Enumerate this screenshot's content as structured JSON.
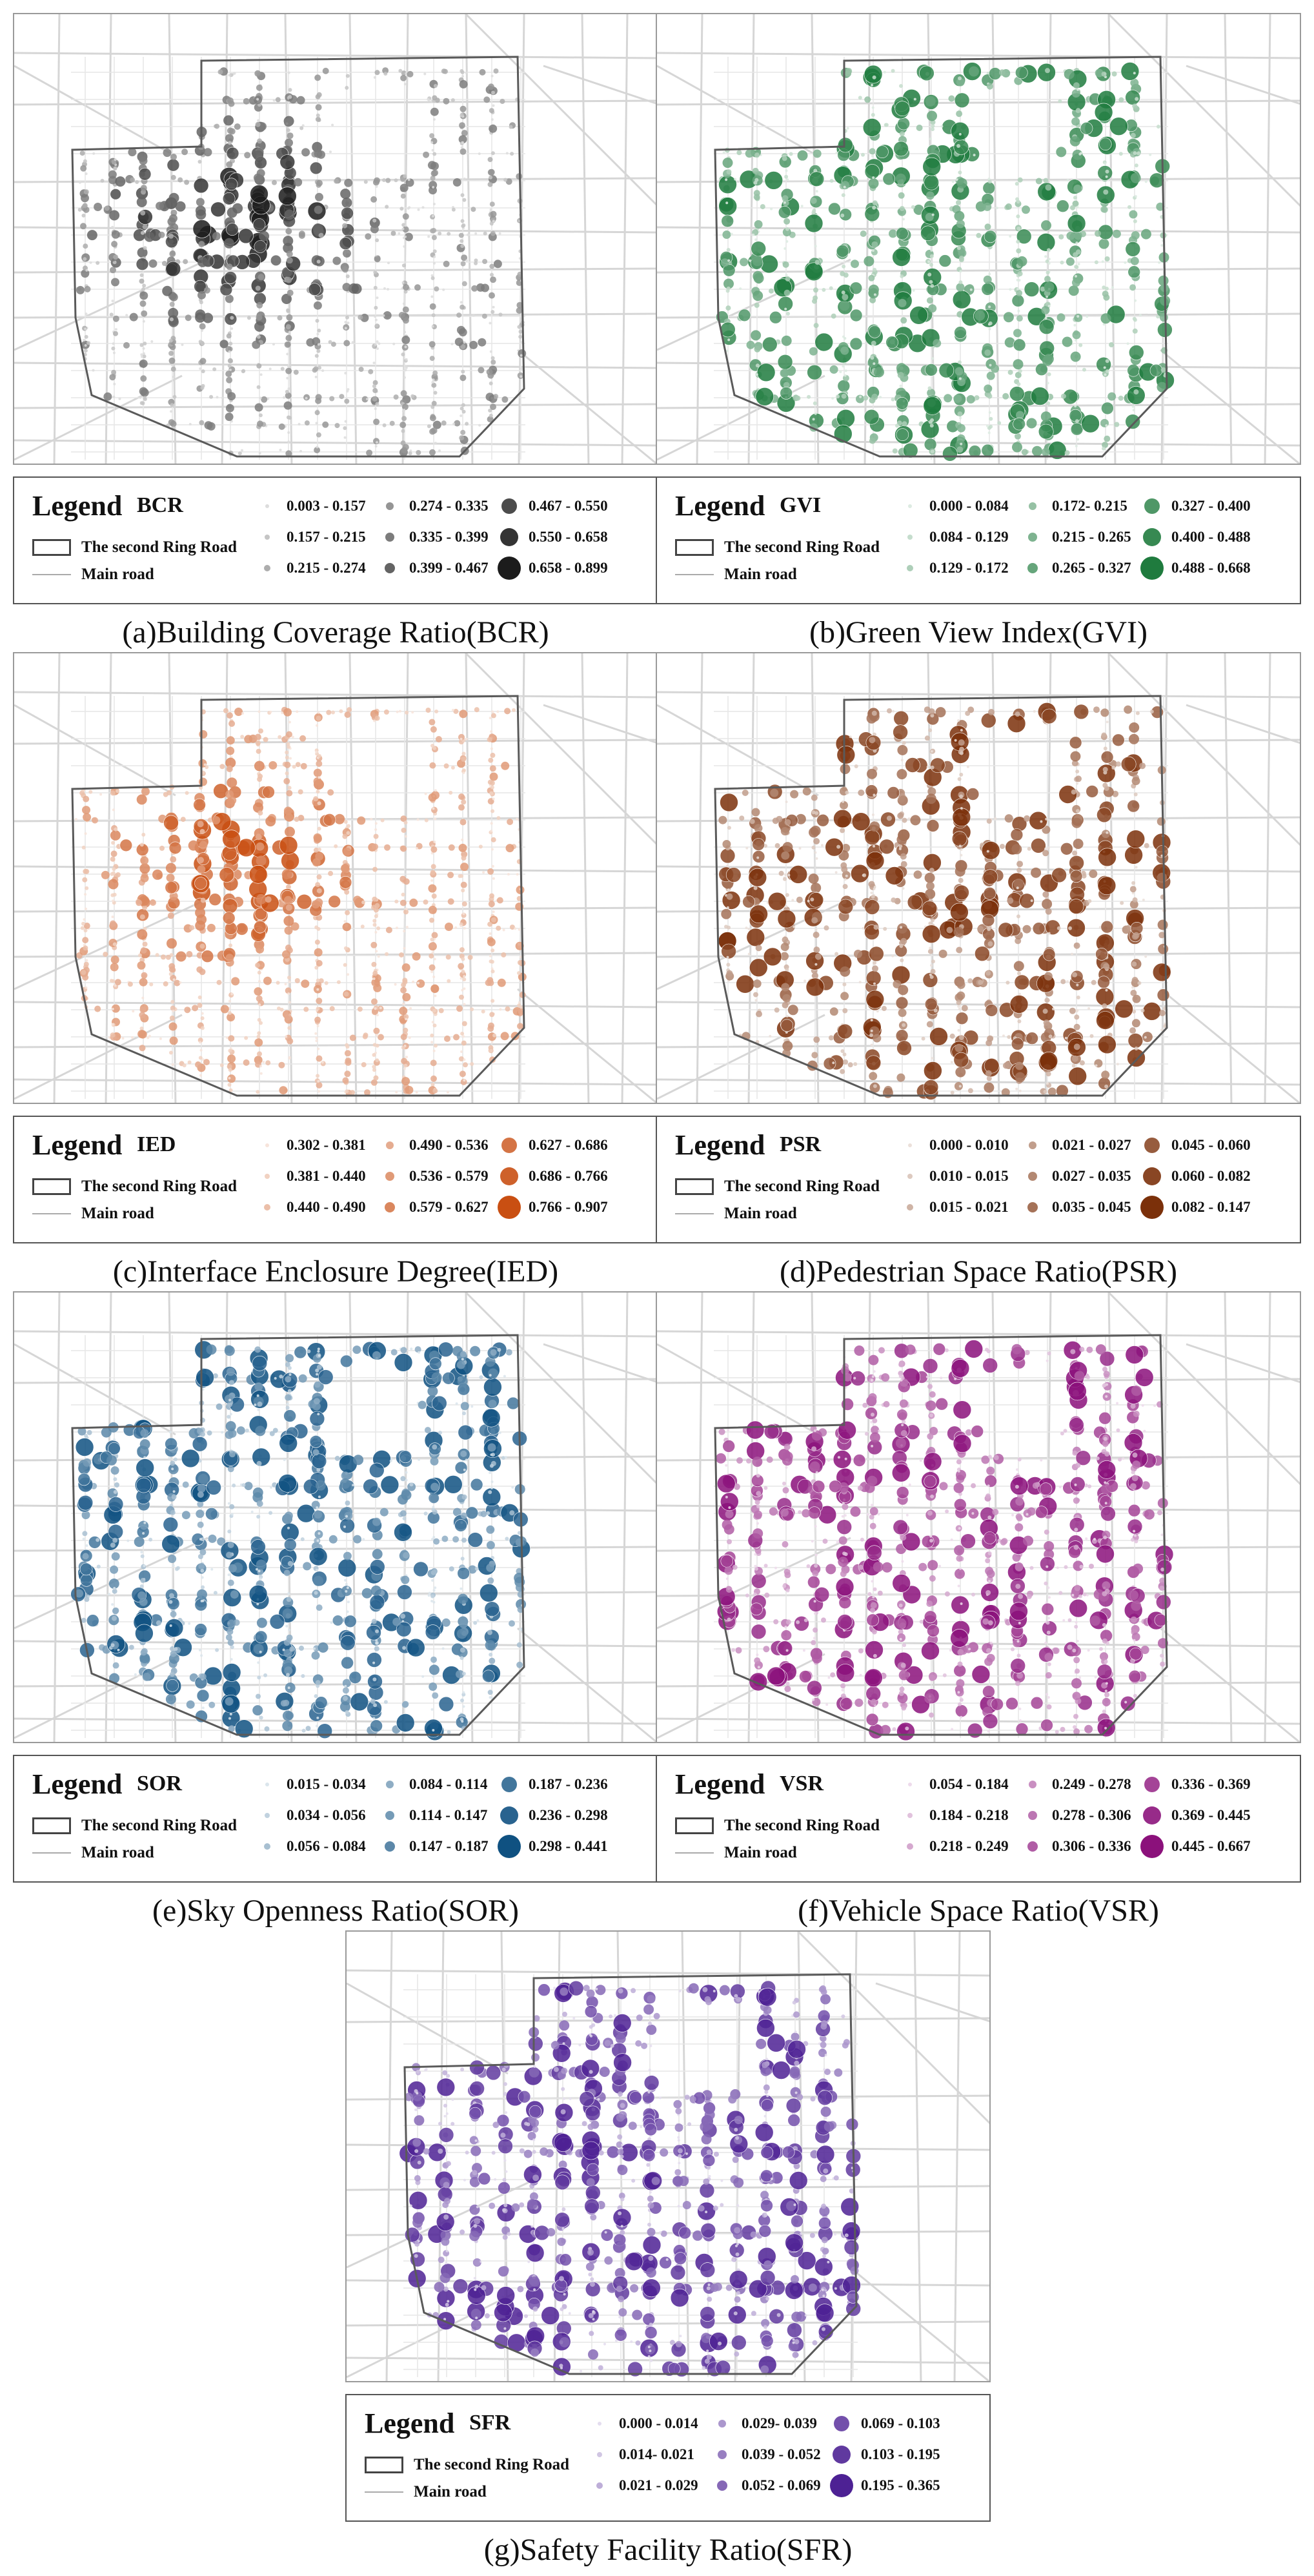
{
  "common": {
    "legend_title": "Legend",
    "ring_road_label": "The second Ring Road",
    "main_road_label": "Main road"
  },
  "panels": [
    {
      "key": "a",
      "variable": "BCR",
      "color": "#1a1a1a",
      "caption": "(a)Building Coverage Ratio(BCR)",
      "classes": [
        "0.003 - 0.157",
        "0.157 - 0.215",
        "0.215 - 0.274",
        "0.274 - 0.335",
        "0.335 - 0.399",
        "0.399 - 0.467",
        "0.467 - 0.550",
        "0.550 - 0.658",
        "0.658 - 0.899"
      ]
    },
    {
      "key": "b",
      "variable": "GVI",
      "color": "#1d7a3c",
      "caption": "(b)Green View Index(GVI)",
      "classes": [
        "0.000 - 0.084",
        "0.084 - 0.129",
        "0.129 - 0.172",
        "0.172- 0.215",
        "0.215 - 0.265",
        "0.265 - 0.327",
        "0.327 - 0.400",
        "0.400 - 0.488",
        "0.488 - 0.668"
      ]
    },
    {
      "key": "c",
      "variable": "IED",
      "color": "#c84d10",
      "caption": "(c)Interface Enclosure Degree(IED)",
      "classes": [
        "0.302 - 0.381",
        "0.381 - 0.440",
        "0.440 - 0.490",
        "0.490 - 0.536",
        "0.536 - 0.579",
        "0.579 - 0.627",
        "0.627 - 0.686",
        "0.686 - 0.766",
        "0.766 - 0.907"
      ]
    },
    {
      "key": "d",
      "variable": "PSR",
      "color": "#7a2e08",
      "caption": "(d)Pedestrian Space Ratio(PSR)",
      "classes": [
        "0.000 - 0.010",
        "0.010 - 0.015",
        "0.015 - 0.021",
        "0.021 - 0.027",
        "0.027 - 0.035",
        "0.035 - 0.045",
        "0.045 - 0.060",
        "0.060 - 0.082",
        "0.082 - 0.147"
      ]
    },
    {
      "key": "e",
      "variable": "SOR",
      "color": "#0d4f80",
      "caption": "(e)Sky Openness Ratio(SOR)",
      "classes": [
        "0.015 - 0.034",
        "0.034 - 0.056",
        "0.056 - 0.084",
        "0.084 - 0.114",
        "0.114 - 0.147",
        "0.147 - 0.187",
        "0.187 - 0.236",
        "0.236 - 0.298",
        "0.298 - 0.441"
      ]
    },
    {
      "key": "f",
      "variable": "VSR",
      "color": "#8a0f7a",
      "caption": "(f)Vehicle Space Ratio(VSR)",
      "classes": [
        "0.054 - 0.184",
        "0.184 - 0.218",
        "0.218 - 0.249",
        "0.249 - 0.278",
        "0.278 - 0.306",
        "0.306 - 0.336",
        "0.336 - 0.369",
        "0.369 - 0.445",
        "0.445 - 0.667"
      ]
    },
    {
      "key": "g",
      "variable": "SFR",
      "color": "#4b1f93",
      "caption": "(g)Safety Facility Ratio(SFR)",
      "classes": [
        "0.000 - 0.014",
        "0.014- 0.021",
        "0.021 - 0.029",
        "0.029- 0.039",
        "0.039 - 0.052",
        "0.052 - 0.069",
        "0.069 - 0.103",
        "0.103 - 0.195",
        "0.195 - 0.365"
      ]
    }
  ]
}
